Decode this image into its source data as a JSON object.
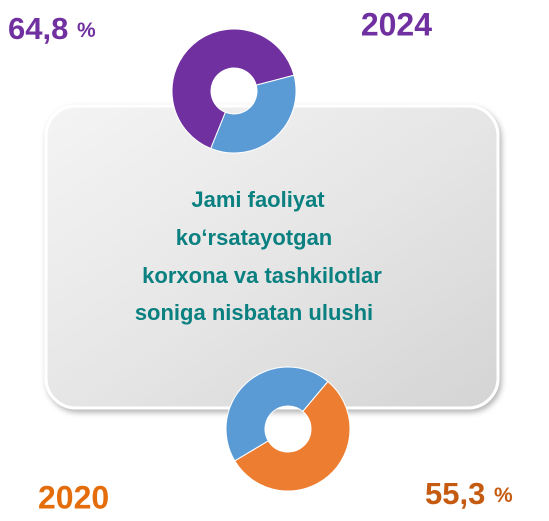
{
  "chart_data": [
    {
      "type": "pie",
      "title": "2024",
      "values": [
        64.8,
        35.2
      ],
      "value_labels": [
        "64,8 %",
        null
      ],
      "colors": [
        "#7030a0",
        "#5b9bd5"
      ]
    },
    {
      "type": "pie",
      "title": "2020",
      "values": [
        55.3,
        44.7
      ],
      "value_labels": [
        "55,3 %",
        null
      ],
      "colors": [
        "#ed7d31",
        "#5b9bd5"
      ]
    }
  ],
  "caption": [
    "Jami faoliyat",
    "ko‘rsatayotgan",
    "korxona va tashkilotlar",
    "soniga nisbatan ulushi"
  ]
}
